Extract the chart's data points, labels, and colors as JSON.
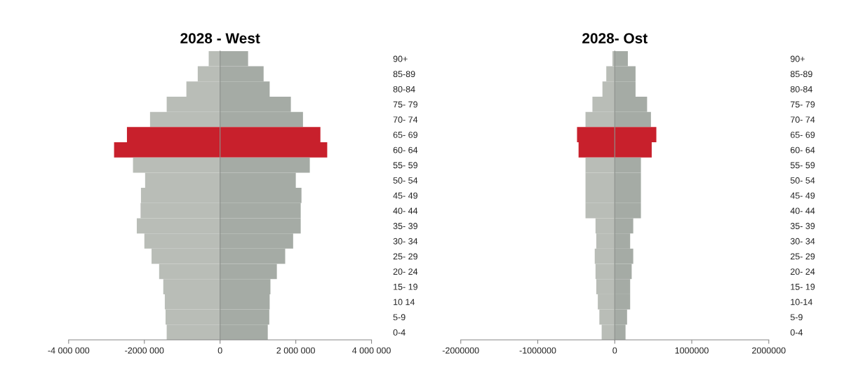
{
  "chart_data": [
    {
      "type": "bar",
      "orientation": "horizontal",
      "stacked": true,
      "title": "2028 - West",
      "categories": [
        "90+",
        "85-89",
        "80-84",
        "75- 79",
        "70- 74",
        "65- 69",
        "60- 64",
        "55- 59",
        "50- 54",
        "45- 49",
        "40- 44",
        "35- 39",
        "30- 34",
        "25- 29",
        "20- 24",
        "15- 19",
        "10 14",
        "5-9",
        "0-4"
      ],
      "series": [
        {
          "colors": [
            "#b9bdb7",
            "#b9bdb7",
            "#b9bdb7",
            "#b9bdb7",
            "#b9bdb7",
            "#c8202c",
            "#c8202c",
            "#b9bdb7",
            "#b9bdb7",
            "#b9bdb7",
            "#b9bdb7",
            "#b9bdb7",
            "#b9bdb7",
            "#b9bdb7",
            "#b9bdb7",
            "#b9bdb7",
            "#b9bdb7",
            "#b9bdb7",
            "#b9bdb7"
          ],
          "values": [
            -300000,
            -590000,
            -890000,
            -1410000,
            -1850000,
            -2460000,
            -2800000,
            -2300000,
            -1980000,
            -2090000,
            -2100000,
            -2200000,
            -2000000,
            -1810000,
            -1610000,
            -1500000,
            -1460000,
            -1440000,
            -1410000
          ]
        },
        {
          "colors": [
            "#a5aba5",
            "#a5aba5",
            "#a5aba5",
            "#a5aba5",
            "#a5aba5",
            "#c8202c",
            "#c8202c",
            "#a5aba5",
            "#a5aba5",
            "#a5aba5",
            "#a5aba5",
            "#a5aba5",
            "#a5aba5",
            "#a5aba5",
            "#a5aba5",
            "#a5aba5",
            "#a5aba5",
            "#a5aba5",
            "#a5aba5"
          ],
          "values": [
            740000,
            1150000,
            1310000,
            1870000,
            2190000,
            2650000,
            2830000,
            2370000,
            2000000,
            2150000,
            2130000,
            2130000,
            1930000,
            1720000,
            1500000,
            1330000,
            1310000,
            1300000,
            1260000
          ]
        }
      ],
      "xlim": [
        -4000000,
        4000000
      ],
      "xticks": [
        {
          "value": -4000000,
          "label": "-4 000 000"
        },
        {
          "value": -2000000,
          "label": "-2000 000"
        },
        0,
        {
          "value": 2000000,
          "label": "2 000 000"
        },
        {
          "value": 4000000,
          "label": "4 000 000"
        }
      ]
    },
    {
      "type": "bar",
      "orientation": "horizontal",
      "stacked": true,
      "title": "2028- Ost",
      "categories": [
        "90+",
        "85-89",
        "80-84",
        "75- 79",
        "70- 74",
        "65- 69",
        "60- 64",
        "55- 59",
        "50- 54",
        "45- 49",
        "40- 44",
        "35- 39",
        "30- 34",
        "25- 29",
        "20- 24",
        "15- 19",
        "10-14",
        "5-9",
        "0-4"
      ],
      "series": [
        {
          "colors": [
            "#b9bdb7",
            "#b9bdb7",
            "#b9bdb7",
            "#b9bdb7",
            "#b9bdb7",
            "#c8202c",
            "#c8202c",
            "#b9bdb7",
            "#b9bdb7",
            "#b9bdb7",
            "#b9bdb7",
            "#b9bdb7",
            "#b9bdb7",
            "#b9bdb7",
            "#b9bdb7",
            "#b9bdb7",
            "#b9bdb7",
            "#b9bdb7",
            "#b9bdb7"
          ],
          "values": [
            -30000,
            -110000,
            -160000,
            -290000,
            -380000,
            -490000,
            -470000,
            -380000,
            -380000,
            -380000,
            -380000,
            -250000,
            -240000,
            -260000,
            -250000,
            -240000,
            -220000,
            -200000,
            -170000
          ]
        },
        {
          "colors": [
            "#a5aba5",
            "#a5aba5",
            "#a5aba5",
            "#a5aba5",
            "#a5aba5",
            "#c8202c",
            "#c8202c",
            "#a5aba5",
            "#a5aba5",
            "#a5aba5",
            "#a5aba5",
            "#a5aba5",
            "#a5aba5",
            "#a5aba5",
            "#a5aba5",
            "#a5aba5",
            "#a5aba5",
            "#a5aba5",
            "#a5aba5"
          ],
          "values": [
            170000,
            270000,
            270000,
            420000,
            470000,
            540000,
            480000,
            340000,
            340000,
            340000,
            340000,
            240000,
            200000,
            240000,
            220000,
            200000,
            200000,
            160000,
            140000
          ]
        }
      ],
      "xlim": [
        -2000000,
        2000000
      ],
      "xticks": [
        -2000000,
        -1000000,
        0,
        1000000,
        2000000
      ]
    }
  ]
}
